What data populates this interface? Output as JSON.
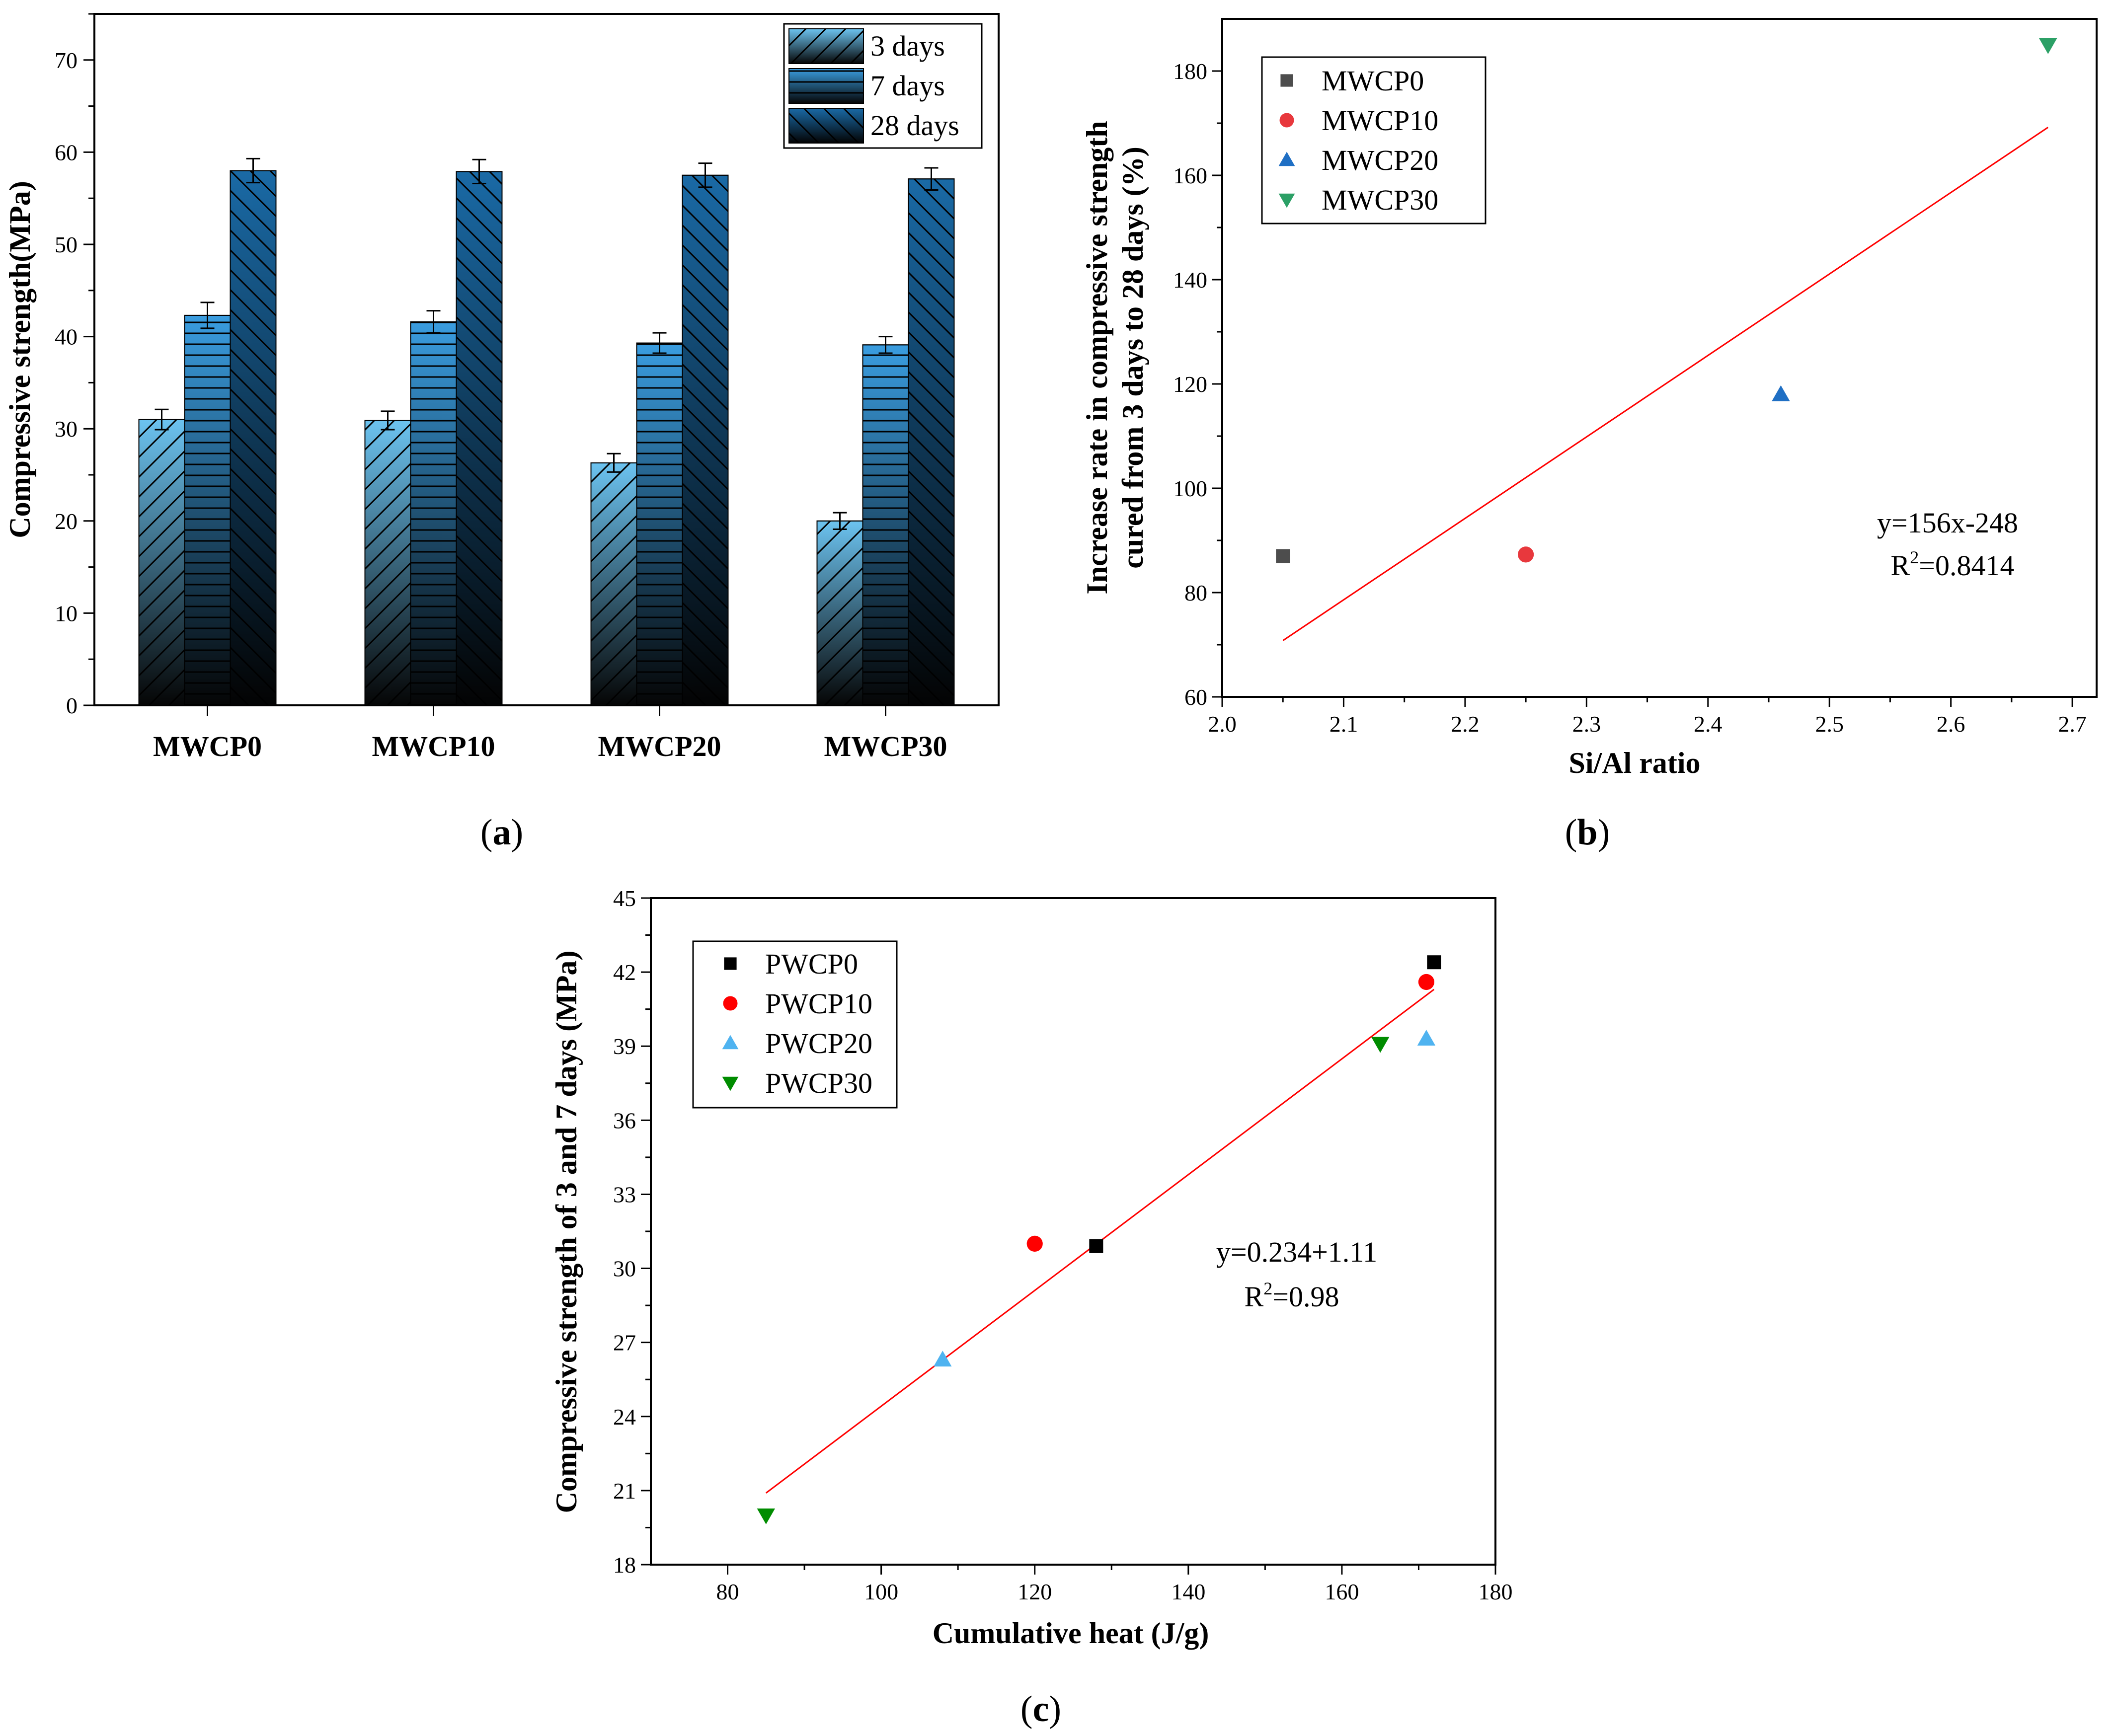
{
  "chart_data": [
    {
      "id": "a",
      "type": "bar",
      "panel_label": "a",
      "ylabel": "Compressive strength(MPa)",
      "xlabel": "",
      "categories": [
        "MWCP0",
        "MWCP10",
        "MWCP20",
        "MWCP30"
      ],
      "ylim": [
        0,
        75
      ],
      "yticks": [
        0,
        10,
        20,
        30,
        40,
        50,
        60,
        70
      ],
      "series": [
        {
          "name": "3 days",
          "values": [
            31.0,
            30.9,
            26.3,
            20.0
          ],
          "errors": [
            1.1,
            1.0,
            1.0,
            0.9
          ],
          "color": "#6cc3f0",
          "pattern": "diagonal"
        },
        {
          "name": "7 days",
          "values": [
            42.3,
            41.6,
            39.3,
            39.1
          ],
          "errors": [
            1.4,
            1.2,
            1.1,
            0.9
          ],
          "color": "#3a9de0",
          "pattern": "horizontal"
        },
        {
          "name": "28 days",
          "values": [
            58.0,
            57.9,
            57.5,
            57.1
          ],
          "errors": [
            1.3,
            1.3,
            1.3,
            1.2
          ],
          "color": "#1a6aa6",
          "pattern": "backdiagonal"
        }
      ],
      "legend_position": "top-right"
    },
    {
      "id": "b",
      "type": "scatter",
      "panel_label": "b",
      "xlabel": "Si/Al ratio",
      "ylabel_lines": [
        "Increase rate in compressive strength",
        "cured from 3 days to 28 days (%)"
      ],
      "xlim": [
        2.0,
        2.72
      ],
      "ylim": [
        60,
        190
      ],
      "xticks": [
        2.0,
        2.1,
        2.2,
        2.3,
        2.4,
        2.5,
        2.6,
        2.7
      ],
      "xtick_labels": [
        "2.0",
        "2.1",
        "2.2",
        "2.3",
        "2.4",
        "2.5",
        "2.6",
        "2.7"
      ],
      "yticks": [
        60,
        80,
        100,
        120,
        140,
        160,
        180
      ],
      "series": [
        {
          "name": "MWCP0",
          "marker": "square",
          "color": "#4d4d4d",
          "points": [
            [
              2.05,
              87
            ]
          ]
        },
        {
          "name": "MWCP10",
          "marker": "circle",
          "color": "#e8383d",
          "points": [
            [
              2.25,
              87.3
            ]
          ]
        },
        {
          "name": "MWCP20",
          "marker": "triangle-up",
          "color": "#1f6fc4",
          "points": [
            [
              2.46,
              118
            ]
          ]
        },
        {
          "name": "MWCP30",
          "marker": "triangle-down",
          "color": "#2ca066",
          "points": [
            [
              2.68,
              185
            ]
          ]
        }
      ],
      "fit": {
        "x": [
          2.05,
          2.68
        ],
        "y": [
          70.8,
          169.2
        ],
        "color": "#ff0000"
      },
      "equation": "y=156x-248",
      "r2_prefix": "R",
      "r2_sup": "2",
      "r2_value": "=0.8414",
      "legend_position": "top-left"
    },
    {
      "id": "c",
      "type": "scatter",
      "panel_label": "c",
      "xlabel": "Cumulative heat (J/g)",
      "ylabel": "Compressive strength of  3 and 7 days (MPa)",
      "xlim": [
        70,
        180
      ],
      "ylim": [
        18,
        45
      ],
      "xticks": [
        80,
        100,
        120,
        140,
        160,
        180
      ],
      "yticks": [
        18,
        21,
        24,
        27,
        30,
        33,
        36,
        39,
        42,
        45
      ],
      "series": [
        {
          "name": "PWCP0",
          "marker": "square",
          "color": "#000000",
          "points": [
            [
              128,
              30.9
            ],
            [
              172,
              42.4
            ]
          ]
        },
        {
          "name": "PWCP10",
          "marker": "circle",
          "color": "#ff0000",
          "points": [
            [
              120,
              31.0
            ],
            [
              171,
              41.6
            ]
          ]
        },
        {
          "name": "PWCP20",
          "marker": "triangle-up",
          "color": "#4fb3f0",
          "points": [
            [
              108,
              26.3
            ],
            [
              171,
              39.3
            ]
          ]
        },
        {
          "name": "PWCP30",
          "marker": "triangle-down",
          "color": "#008c00",
          "points": [
            [
              85,
              20.0
            ],
            [
              165,
              39.1
            ]
          ]
        }
      ],
      "fit": {
        "x": [
          85,
          172
        ],
        "y": [
          20.9,
          41.3
        ],
        "color": "#ff0000"
      },
      "equation": "y=0.234+1.11",
      "r2_prefix": "R",
      "r2_sup": "2",
      "r2_value": "=0.98",
      "legend_position": "top-left"
    }
  ]
}
